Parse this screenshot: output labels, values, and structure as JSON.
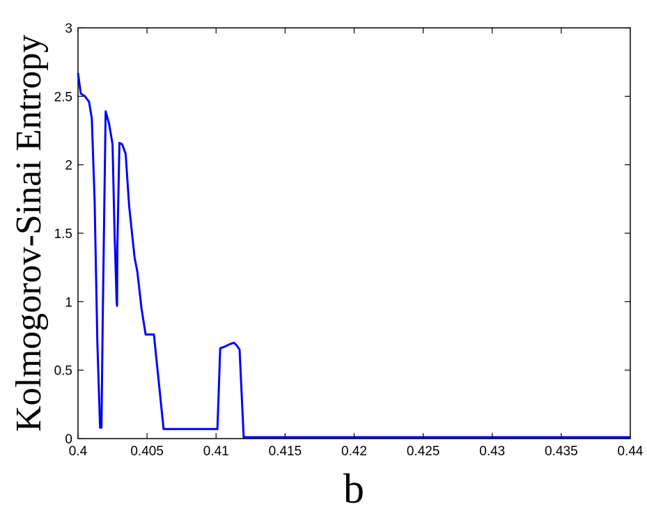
{
  "chart_data": {
    "type": "line",
    "xlabel": "b",
    "ylabel": "Kolmogorov-Sinai Entropy",
    "xlim": [
      0.4,
      0.44
    ],
    "ylim": [
      0,
      3
    ],
    "xticks": [
      {
        "value": 0.4,
        "label": "0.4"
      },
      {
        "value": 0.405,
        "label": "0.405"
      },
      {
        "value": 0.41,
        "label": "0.41"
      },
      {
        "value": 0.415,
        "label": "0.415"
      },
      {
        "value": 0.42,
        "label": "0.42"
      },
      {
        "value": 0.425,
        "label": "0.425"
      },
      {
        "value": 0.43,
        "label": "0.43"
      },
      {
        "value": 0.435,
        "label": "0.435"
      },
      {
        "value": 0.44,
        "label": "0.44"
      }
    ],
    "yticks": [
      {
        "value": 0,
        "label": "0"
      },
      {
        "value": 0.5,
        "label": "0.5"
      },
      {
        "value": 1,
        "label": "1"
      },
      {
        "value": 1.5,
        "label": "1.5"
      },
      {
        "value": 2,
        "label": "2"
      },
      {
        "value": 2.5,
        "label": "2.5"
      },
      {
        "value": 3,
        "label": "3"
      }
    ],
    "grid": false,
    "series": [
      {
        "color": "#0000ff",
        "x": [
          0.4,
          0.4002,
          0.4005,
          0.4008,
          0.401,
          0.4012,
          0.4014,
          0.4016,
          0.4017,
          0.4018,
          0.402,
          0.40225,
          0.4025,
          0.40265,
          0.4028,
          0.40283,
          0.40285,
          0.403,
          0.4032,
          0.40345,
          0.4037,
          0.4041,
          0.4043,
          0.4046,
          0.4049,
          0.4052,
          0.4053,
          0.4055,
          0.4062,
          0.4075,
          0.409,
          0.4101,
          0.4103,
          0.4106,
          0.411,
          0.4113,
          0.4115,
          0.4117,
          0.412,
          0.413,
          0.42,
          0.43,
          0.44
        ],
        "y": [
          2.67,
          2.52,
          2.5,
          2.46,
          2.34,
          1.75,
          0.7,
          0.08,
          0.08,
          0.95,
          2.39,
          2.3,
          2.15,
          1.5,
          1.0,
          0.97,
          1.4,
          2.16,
          2.15,
          2.08,
          1.7,
          1.32,
          1.22,
          0.95,
          0.76,
          0.76,
          0.76,
          0.76,
          0.07,
          0.07,
          0.07,
          0.07,
          0.66,
          0.67,
          0.69,
          0.7,
          0.68,
          0.65,
          0.01,
          0.01,
          0.01,
          0.01,
          0.01
        ]
      }
    ]
  }
}
